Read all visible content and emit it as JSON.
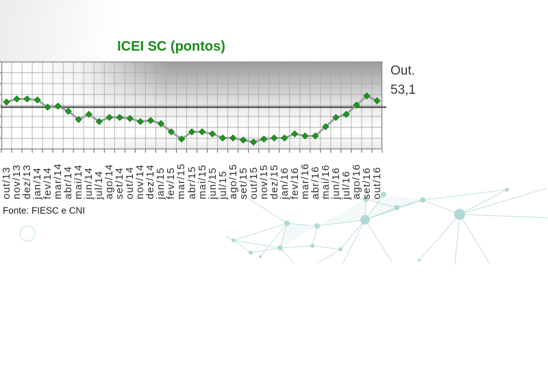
{
  "title": "ICEI SC (pontos)",
  "annotation": {
    "line1": "Out.",
    "line2": "53,1"
  },
  "source": "Fonte: FIESC e CNI",
  "colors": {
    "title_green": "#1b8a1b",
    "marker_green": "#219421",
    "marker_border": "#0f7a0f",
    "series_line": "#9b9b9b",
    "reference_line": "#3d3d3d",
    "grid": "#a6a6a6",
    "axis_border": "#8a8a8a",
    "tick": "#555555",
    "annotation_text": "#383838",
    "network_teal": "#a9d6d1"
  },
  "chart_data": {
    "type": "line",
    "title": "ICEI SC (pontos)",
    "marker": "diamond",
    "x": [
      "out/13",
      "nov/13",
      "dez/13",
      "jan/14",
      "fev/14",
      "mar/14",
      "abr/14",
      "mai/14",
      "jun/14",
      "jul/14",
      "ago/14",
      "set/14",
      "out/14",
      "nov/14",
      "dez/14",
      "jan/15",
      "fev/15",
      "mar/15",
      "abr/15",
      "mai/15",
      "jun/15",
      "jul/15",
      "ago/15",
      "set/15",
      "out/15",
      "nov/15",
      "dez/15",
      "jan/16",
      "fev/16",
      "mar/16",
      "abr/16",
      "mai/16",
      "jun/16",
      "jul/16",
      "ago/16",
      "set/16",
      "out/16"
    ],
    "series": [
      {
        "name": "ICEI SC",
        "values": [
          52.5,
          54.0,
          54.0,
          53.5,
          50.0,
          50.5,
          48.0,
          44.0,
          46.5,
          43.0,
          45.0,
          45.0,
          44.5,
          43.0,
          43.5,
          42.0,
          38.0,
          34.5,
          38.0,
          38.0,
          37.0,
          35.0,
          35.0,
          34.0,
          33.0,
          34.5,
          35.0,
          35.0,
          37.0,
          36.0,
          36.0,
          40.5,
          45.0,
          46.5,
          51.0,
          55.5,
          53.1
        ]
      }
    ],
    "reference_line": 50,
    "ylim": [
      29,
      72
    ],
    "grid": true,
    "xlabel": "",
    "ylabel": "",
    "last_point_label": "Out. 53,1"
  }
}
